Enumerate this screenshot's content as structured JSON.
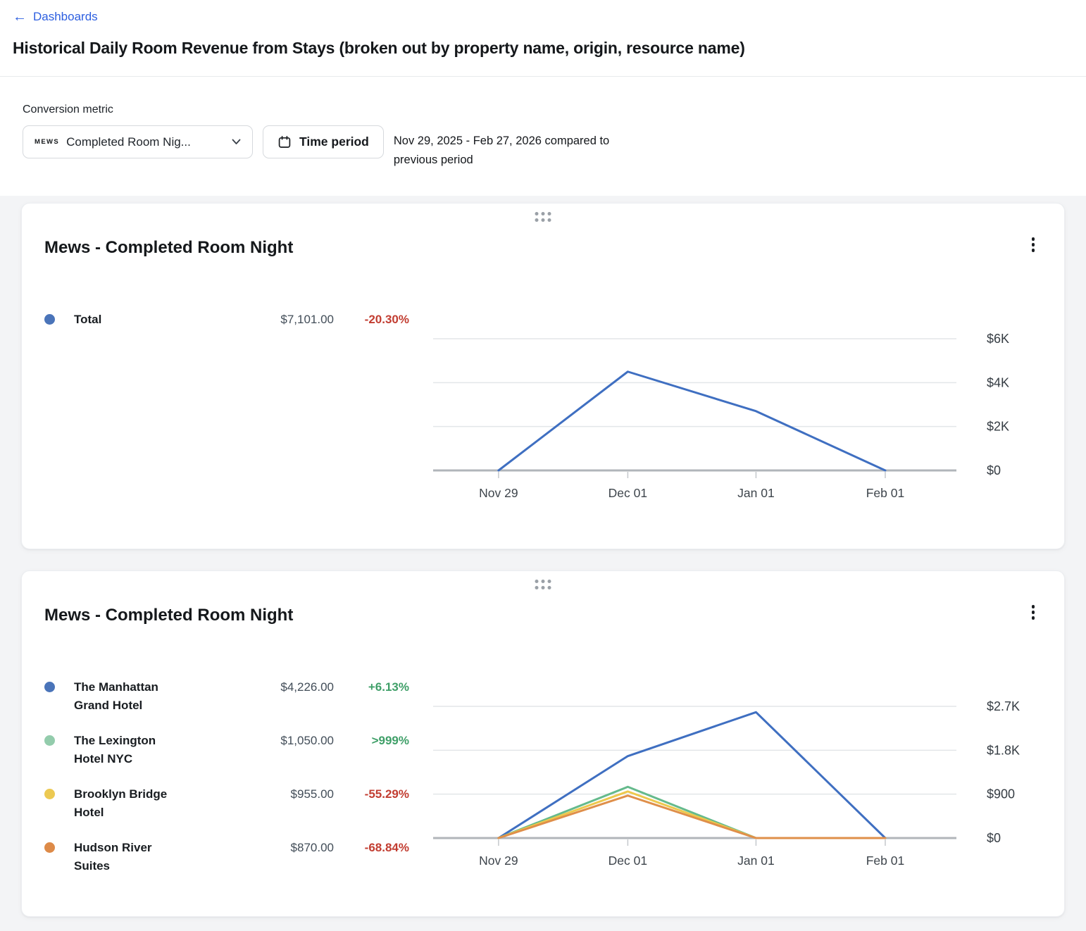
{
  "nav": {
    "back_label": "Dashboards"
  },
  "icons": {
    "back_arrow": "←",
    "chevron_down": "⌄",
    "calendar": "🗓",
    "kebab_menu": "⋮",
    "drag_handle": "⠿"
  },
  "page": {
    "title": "Historical Daily Room Revenue from Stays (broken out by property name, origin, resource name)"
  },
  "controls": {
    "label": "Conversion metric",
    "metric_dropdown": {
      "logo": "MEWS",
      "value": "Completed Room Nig..."
    },
    "time_period_label": "Time period",
    "period_line1": "Nov 29, 2025 - Feb 27, 2026 compared to",
    "period_line2": "previous period"
  },
  "colors": {
    "link": "#2d5fe0",
    "positive": "#3f9f68",
    "negative": "#c23d31",
    "value_text": "#424d58",
    "gridline": "#e3e6e9",
    "axis": "#b1b5ba",
    "page_background": "#f3f4f6"
  },
  "cards": [
    {
      "title": "Mews - Completed Room Night",
      "legend": [
        {
          "label": "Total",
          "value": "$7,101.00",
          "change": "-20.30%",
          "trend": "down",
          "dot_color": "#4a74b9"
        }
      ]
    },
    {
      "title": "Mews - Completed Room Night",
      "legend": [
        {
          "label": "The Manhattan Grand Hotel",
          "value": "$4,226.00",
          "change": "+6.13%",
          "trend": "up",
          "dot_color": "#4a74b9"
        },
        {
          "label": "The Lexington Hotel NYC",
          "value": "$1,050.00",
          "change": ">999%",
          "trend": "up",
          "dot_color": "#93ccac"
        },
        {
          "label": "Brooklyn Bridge Hotel",
          "value": "$955.00",
          "change": "-55.29%",
          "trend": "down",
          "dot_color": "#ecc952"
        },
        {
          "label": "Hudson River Suites",
          "value": "$870.00",
          "change": "-68.84%",
          "trend": "down",
          "dot_color": "#dd8a48"
        }
      ]
    }
  ],
  "chart_data": [
    {
      "type": "line",
      "title": "Mews - Completed Room Night",
      "x": [
        "Nov 29",
        "Dec 01",
        "Jan 01",
        "Feb 01"
      ],
      "series": [
        {
          "name": "Total",
          "color": "#3f6fc1",
          "values": [
            0,
            4500,
            2700,
            0
          ]
        }
      ],
      "yticks": [
        {
          "label": "$0",
          "value": 0
        },
        {
          "label": "$2K",
          "value": 2000
        },
        {
          "label": "$4K",
          "value": 4000
        },
        {
          "label": "$6K",
          "value": 6000
        }
      ],
      "ymax": 6000,
      "ylabel_side": "right",
      "grid": true,
      "legend_position": "left"
    },
    {
      "type": "line",
      "title": "Mews - Completed Room Night",
      "x": [
        "Nov 29",
        "Dec 01",
        "Jan 01",
        "Feb 01"
      ],
      "series": [
        {
          "name": "The Manhattan Grand Hotel",
          "color": "#3f6fc1",
          "values": [
            0,
            1680,
            2580,
            0
          ]
        },
        {
          "name": "The Lexington Hotel NYC",
          "color": "#65ba8c",
          "values": [
            0,
            1050,
            0,
            0
          ]
        },
        {
          "name": "Brooklyn Bridge Hotel",
          "color": "#edc84d",
          "values": [
            0,
            955,
            0,
            0
          ]
        },
        {
          "name": "Hudson River Suites",
          "color": "#df8f4a",
          "values": [
            0,
            870,
            0,
            0
          ]
        }
      ],
      "yticks": [
        {
          "label": "$0",
          "value": 0
        },
        {
          "label": "$900",
          "value": 900
        },
        {
          "label": "$1.8K",
          "value": 1800
        },
        {
          "label": "$2.7K",
          "value": 2700
        }
      ],
      "ymax": 2700,
      "ylabel_side": "right",
      "grid": true,
      "legend_position": "left"
    }
  ]
}
